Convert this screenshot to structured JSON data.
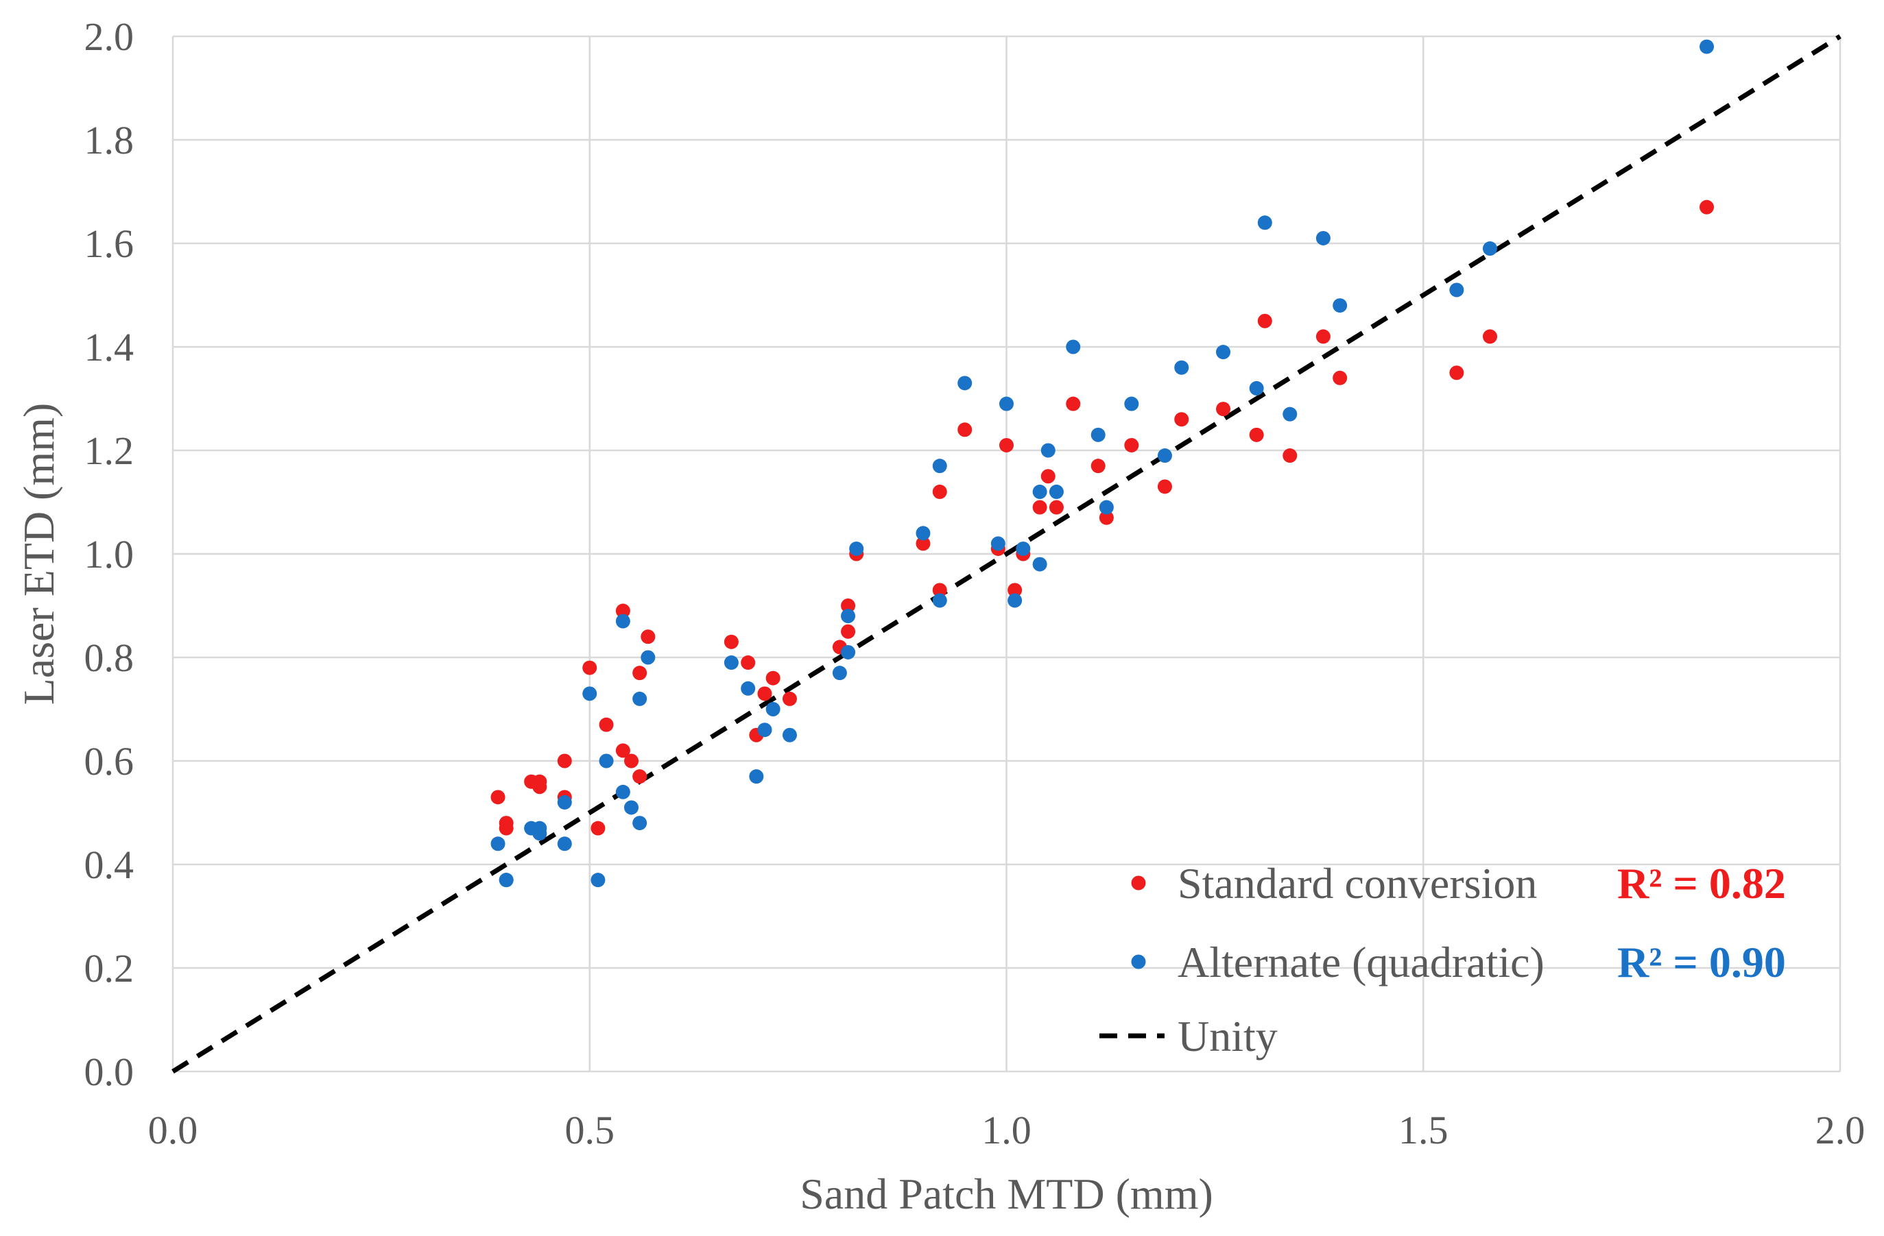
{
  "chart_data": {
    "type": "scatter",
    "xlabel": "Sand Patch MTD (mm)",
    "ylabel": "Laser ETD (mm)",
    "xlim": [
      0,
      2
    ],
    "ylim": [
      0,
      2
    ],
    "x_ticks": [
      "0.0",
      "0.5",
      "1.0",
      "1.5",
      "2.0"
    ],
    "y_ticks": [
      "0.0",
      "0.2",
      "0.4",
      "0.6",
      "0.8",
      "1.0",
      "1.2",
      "1.4",
      "1.6",
      "1.8",
      "2.0"
    ],
    "grid": true,
    "legend_position": "bottom-right",
    "series": [
      {
        "name": "Standard conversion",
        "kind": "scatter",
        "color": "#ee1c1c",
        "r2_label": "R² = 0.82",
        "points": [
          [
            0.39,
            0.53
          ],
          [
            0.4,
            0.47
          ],
          [
            0.4,
            0.48
          ],
          [
            0.43,
            0.56
          ],
          [
            0.44,
            0.56
          ],
          [
            0.44,
            0.55
          ],
          [
            0.47,
            0.6
          ],
          [
            0.47,
            0.53
          ],
          [
            0.5,
            0.78
          ],
          [
            0.51,
            0.47
          ],
          [
            0.52,
            0.67
          ],
          [
            0.54,
            0.89
          ],
          [
            0.54,
            0.62
          ],
          [
            0.55,
            0.6
          ],
          [
            0.56,
            0.77
          ],
          [
            0.56,
            0.57
          ],
          [
            0.57,
            0.84
          ],
          [
            0.67,
            0.83
          ],
          [
            0.69,
            0.79
          ],
          [
            0.7,
            0.65
          ],
          [
            0.71,
            0.73
          ],
          [
            0.72,
            0.76
          ],
          [
            0.74,
            0.72
          ],
          [
            0.8,
            0.82
          ],
          [
            0.81,
            0.85
          ],
          [
            0.81,
            0.9
          ],
          [
            0.82,
            1.0
          ],
          [
            0.9,
            1.02
          ],
          [
            0.92,
            1.12
          ],
          [
            0.92,
            0.93
          ],
          [
            0.95,
            1.24
          ],
          [
            0.99,
            1.01
          ],
          [
            1.0,
            1.21
          ],
          [
            1.01,
            0.93
          ],
          [
            1.02,
            1.0
          ],
          [
            1.04,
            1.09
          ],
          [
            1.05,
            1.15
          ],
          [
            1.06,
            1.09
          ],
          [
            1.08,
            1.29
          ],
          [
            1.11,
            1.17
          ],
          [
            1.12,
            1.07
          ],
          [
            1.15,
            1.21
          ],
          [
            1.19,
            1.13
          ],
          [
            1.21,
            1.26
          ],
          [
            1.26,
            1.28
          ],
          [
            1.3,
            1.23
          ],
          [
            1.31,
            1.45
          ],
          [
            1.34,
            1.19
          ],
          [
            1.38,
            1.42
          ],
          [
            1.4,
            1.34
          ],
          [
            1.54,
            1.35
          ],
          [
            1.58,
            1.42
          ],
          [
            1.84,
            1.67
          ]
        ]
      },
      {
        "name": "Alternate (quadratic)",
        "kind": "scatter",
        "color": "#1a73c7",
        "r2_label": "R² = 0.90",
        "points": [
          [
            0.39,
            0.44
          ],
          [
            0.4,
            0.37
          ],
          [
            0.4,
            0.37
          ],
          [
            0.43,
            0.47
          ],
          [
            0.44,
            0.47
          ],
          [
            0.44,
            0.46
          ],
          [
            0.47,
            0.52
          ],
          [
            0.47,
            0.44
          ],
          [
            0.5,
            0.73
          ],
          [
            0.51,
            0.37
          ],
          [
            0.52,
            0.6
          ],
          [
            0.54,
            0.87
          ],
          [
            0.54,
            0.54
          ],
          [
            0.55,
            0.51
          ],
          [
            0.56,
            0.72
          ],
          [
            0.56,
            0.48
          ],
          [
            0.57,
            0.8
          ],
          [
            0.67,
            0.79
          ],
          [
            0.69,
            0.74
          ],
          [
            0.7,
            0.57
          ],
          [
            0.71,
            0.66
          ],
          [
            0.72,
            0.7
          ],
          [
            0.74,
            0.65
          ],
          [
            0.8,
            0.77
          ],
          [
            0.81,
            0.81
          ],
          [
            0.81,
            0.88
          ],
          [
            0.82,
            1.01
          ],
          [
            0.9,
            1.04
          ],
          [
            0.92,
            1.17
          ],
          [
            0.92,
            0.91
          ],
          [
            0.95,
            1.33
          ],
          [
            0.99,
            1.02
          ],
          [
            1.0,
            1.29
          ],
          [
            1.01,
            0.91
          ],
          [
            1.02,
            1.01
          ],
          [
            1.04,
            0.98
          ],
          [
            1.04,
            1.12
          ],
          [
            1.05,
            1.2
          ],
          [
            1.06,
            1.12
          ],
          [
            1.08,
            1.4
          ],
          [
            1.11,
            1.23
          ],
          [
            1.12,
            1.09
          ],
          [
            1.15,
            1.29
          ],
          [
            1.19,
            1.19
          ],
          [
            1.21,
            1.36
          ],
          [
            1.26,
            1.39
          ],
          [
            1.3,
            1.32
          ],
          [
            1.31,
            1.64
          ],
          [
            1.34,
            1.27
          ],
          [
            1.38,
            1.61
          ],
          [
            1.4,
            1.48
          ],
          [
            1.54,
            1.51
          ],
          [
            1.58,
            1.59
          ],
          [
            1.84,
            1.98
          ]
        ]
      },
      {
        "name": "Unity",
        "kind": "line",
        "color": "#000000",
        "style": "dashed",
        "points": [
          [
            0,
            0
          ],
          [
            2,
            2
          ]
        ]
      }
    ]
  }
}
